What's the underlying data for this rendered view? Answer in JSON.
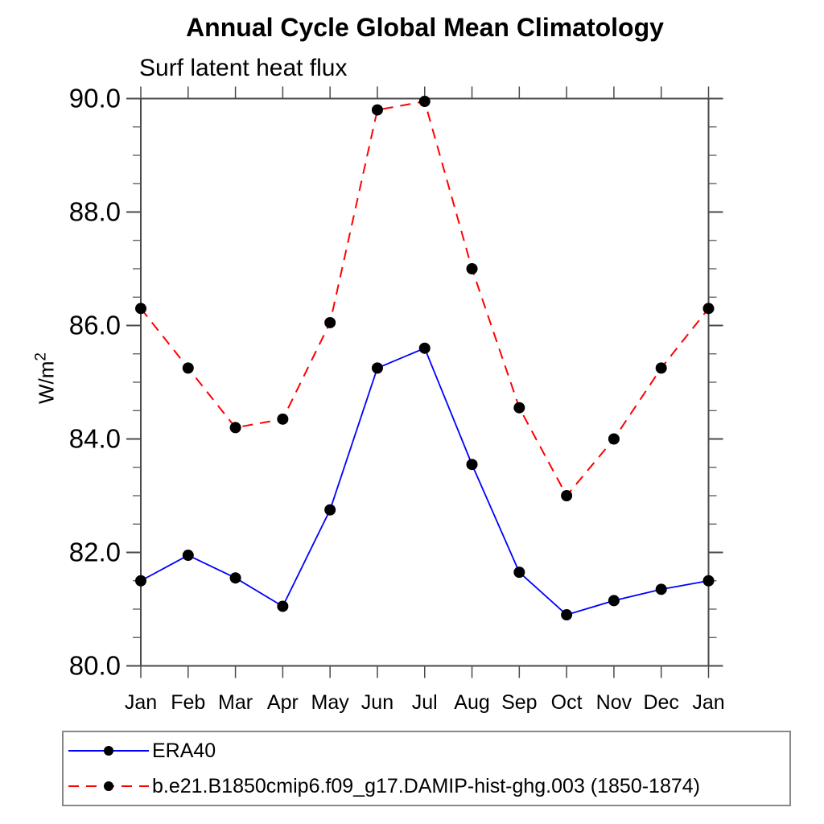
{
  "chart_data": {
    "type": "line",
    "title": "Annual Cycle Global Mean Climatology",
    "subtitle": "Surf latent heat flux",
    "xlabel": "",
    "ylabel": "W/m^2",
    "ylabel_base": "W/m",
    "ylabel_exponent": "2",
    "categories": [
      "Jan",
      "Feb",
      "Mar",
      "Apr",
      "May",
      "Jun",
      "Jul",
      "Aug",
      "Sep",
      "Oct",
      "Nov",
      "Dec",
      "Jan"
    ],
    "series": [
      {
        "name": "ERA40",
        "color": "#0000ff",
        "line_style": "solid",
        "marker": "circle",
        "marker_color": "#000000",
        "values": [
          81.5,
          81.95,
          81.55,
          81.05,
          82.75,
          85.25,
          85.6,
          83.55,
          81.65,
          80.9,
          81.15,
          81.35,
          81.5
        ]
      },
      {
        "name": "b.e21.B1850cmip6.f09_g17.DAMIP-hist-ghg.003 (1850-1874)",
        "color": "#ff0000",
        "line_style": "dashed",
        "marker": "circle",
        "marker_color": "#000000",
        "values": [
          86.3,
          85.25,
          84.2,
          84.35,
          86.05,
          89.8,
          89.95,
          87.0,
          84.55,
          83.0,
          84.0,
          85.25,
          86.3
        ]
      }
    ],
    "ylim": [
      80.0,
      90.0
    ],
    "ytick_major_step": 2.0,
    "ytick_minor_step": 0.5,
    "ytick_labels": [
      "80.0",
      "82.0",
      "84.0",
      "86.0",
      "88.0",
      "90.0"
    ],
    "grid": false,
    "legend_position": "bottom-box",
    "axis_color": "#4a4a4a",
    "text_color": "#000000"
  }
}
